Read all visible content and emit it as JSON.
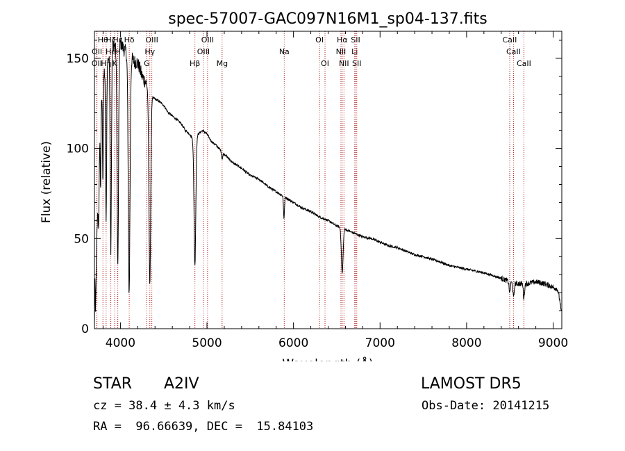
{
  "chart_data": {
    "type": "line",
    "title": "spec-57007-GAC097N16M1_sp04-137.fits",
    "xlabel": "Wavelength (Å)",
    "ylabel": "Flux (relative)",
    "xlim": [
      3700,
      9100
    ],
    "ylim": [
      0,
      165
    ],
    "xticks": [
      4000,
      5000,
      6000,
      7000,
      8000,
      9000
    ],
    "yticks": [
      0,
      50,
      100,
      150
    ],
    "grid": false,
    "line_color": "#000000",
    "marker_color": "#b22222",
    "continuum": [
      [
        3700,
        0
      ],
      [
        3705,
        30
      ],
      [
        3712,
        8
      ],
      [
        3725,
        45
      ],
      [
        3740,
        70
      ],
      [
        3760,
        110
      ],
      [
        3780,
        125
      ],
      [
        3800,
        145
      ],
      [
        3830,
        140
      ],
      [
        3860,
        150
      ],
      [
        3890,
        155
      ],
      [
        3920,
        158
      ],
      [
        3950,
        155
      ],
      [
        3980,
        160
      ],
      [
        4010,
        158
      ],
      [
        4040,
        155
      ],
      [
        4070,
        153
      ],
      [
        4100,
        145
      ],
      [
        4130,
        150
      ],
      [
        4160,
        148
      ],
      [
        4190,
        148
      ],
      [
        4220,
        145
      ],
      [
        4250,
        140
      ],
      [
        4300,
        136
      ],
      [
        4330,
        130
      ],
      [
        4380,
        128
      ],
      [
        4450,
        126
      ],
      [
        4500,
        124
      ],
      [
        4550,
        120
      ],
      [
        4600,
        118
      ],
      [
        4700,
        114
      ],
      [
        4750,
        110
      ],
      [
        4800,
        108
      ],
      [
        4850,
        104
      ],
      [
        4900,
        108
      ],
      [
        4950,
        110
      ],
      [
        5000,
        108
      ],
      [
        5050,
        104
      ],
      [
        5100,
        102
      ],
      [
        5200,
        97
      ],
      [
        5300,
        92
      ],
      [
        5400,
        89
      ],
      [
        5500,
        85
      ],
      [
        5600,
        83
      ],
      [
        5700,
        79
      ],
      [
        5800,
        76
      ],
      [
        5900,
        73
      ],
      [
        6000,
        70
      ],
      [
        6100,
        67
      ],
      [
        6200,
        65
      ],
      [
        6300,
        62
      ],
      [
        6400,
        60
      ],
      [
        6500,
        57
      ],
      [
        6600,
        55
      ],
      [
        6700,
        53
      ],
      [
        6800,
        51
      ],
      [
        6900,
        50
      ],
      [
        7000,
        48
      ],
      [
        7100,
        46
      ],
      [
        7200,
        45
      ],
      [
        7300,
        43
      ],
      [
        7400,
        41
      ],
      [
        7500,
        40
      ],
      [
        7600,
        38.5
      ],
      [
        7700,
        37
      ],
      [
        7800,
        35
      ],
      [
        7900,
        34
      ],
      [
        8000,
        33
      ],
      [
        8100,
        32
      ],
      [
        8200,
        31
      ],
      [
        8300,
        29.5
      ],
      [
        8400,
        28
      ],
      [
        8450,
        27
      ],
      [
        8500,
        26
      ],
      [
        8550,
        25
      ],
      [
        8600,
        25
      ],
      [
        8700,
        25
      ],
      [
        8800,
        26
      ],
      [
        8900,
        25
      ],
      [
        8950,
        24
      ],
      [
        9000,
        23
      ],
      [
        9050,
        22
      ],
      [
        9080,
        15
      ],
      [
        9095,
        8
      ]
    ],
    "absorption_features": [
      [
        3750,
        30,
        8
      ],
      [
        3771,
        40,
        6
      ],
      [
        3798,
        60,
        7
      ],
      [
        3835,
        85,
        8
      ],
      [
        3889,
        110,
        10
      ],
      [
        3970,
        125,
        12
      ],
      [
        4101,
        125,
        14
      ],
      [
        4340,
        105,
        14
      ],
      [
        4861,
        70,
        14
      ],
      [
        5176,
        4,
        10
      ],
      [
        5890,
        12,
        8
      ],
      [
        6563,
        25,
        14
      ],
      [
        8498,
        6,
        10
      ],
      [
        8542,
        8,
        10
      ],
      [
        8662,
        8,
        10
      ]
    ],
    "line_markers": [
      {
        "label": "Hθ",
        "wavelength": 3798,
        "row": 0
      },
      {
        "label": "OII",
        "wavelength": 3727,
        "row": 2
      },
      {
        "label": "OII",
        "wavelength": 3729,
        "row": 1
      },
      {
        "label": "Hη",
        "wavelength": 3835,
        "row": 2
      },
      {
        "label": "He",
        "wavelength": 3889,
        "row": 1
      },
      {
        "label": "Hζ",
        "wavelength": 3889,
        "row": 0
      },
      {
        "label": "Hε",
        "wavelength": 3970,
        "row": 0
      },
      {
        "label": "K",
        "wavelength": 3934,
        "row": 2
      },
      {
        "label": "H",
        "wavelength": 3969,
        "row": 1
      },
      {
        "label": "Hδ",
        "wavelength": 4102,
        "row": 0
      },
      {
        "label": "OIII",
        "wavelength": 4363,
        "row": 0
      },
      {
        "label": "Hγ",
        "wavelength": 4340,
        "row": 1
      },
      {
        "label": "G",
        "wavelength": 4305,
        "row": 2
      },
      {
        "label": "Hβ",
        "wavelength": 4861,
        "row": 2
      },
      {
        "label": "OIII",
        "wavelength": 5007,
        "row": 0
      },
      {
        "label": "OIII",
        "wavelength": 4959,
        "row": 1
      },
      {
        "label": "Mg",
        "wavelength": 5175,
        "row": 2
      },
      {
        "label": "Na",
        "wavelength": 5893,
        "row": 1
      },
      {
        "label": "OI",
        "wavelength": 6300,
        "row": 0
      },
      {
        "label": "OI",
        "wavelength": 6364,
        "row": 2
      },
      {
        "label": "Hα",
        "wavelength": 6563,
        "row": 0
      },
      {
        "label": "NII",
        "wavelength": 6548,
        "row": 1
      },
      {
        "label": "NII",
        "wavelength": 6583,
        "row": 2
      },
      {
        "label": "SII",
        "wavelength": 6717,
        "row": 0
      },
      {
        "label": "Li",
        "wavelength": 6707,
        "row": 1
      },
      {
        "label": "SII",
        "wavelength": 6731,
        "row": 2
      },
      {
        "label": "CaII",
        "wavelength": 8498,
        "row": 0
      },
      {
        "label": "CaII",
        "wavelength": 8542,
        "row": 1
      },
      {
        "label": "CaII",
        "wavelength": 8662,
        "row": 2
      }
    ]
  },
  "info": {
    "class": "STAR",
    "subclass": "A2IV",
    "survey": "LAMOST DR5",
    "cz": "cz = 38.4 ± 4.3 km/s",
    "obs_date": "Obs-Date: 20141215",
    "coords": "RA =  96.66639, DEC =  15.84103"
  }
}
